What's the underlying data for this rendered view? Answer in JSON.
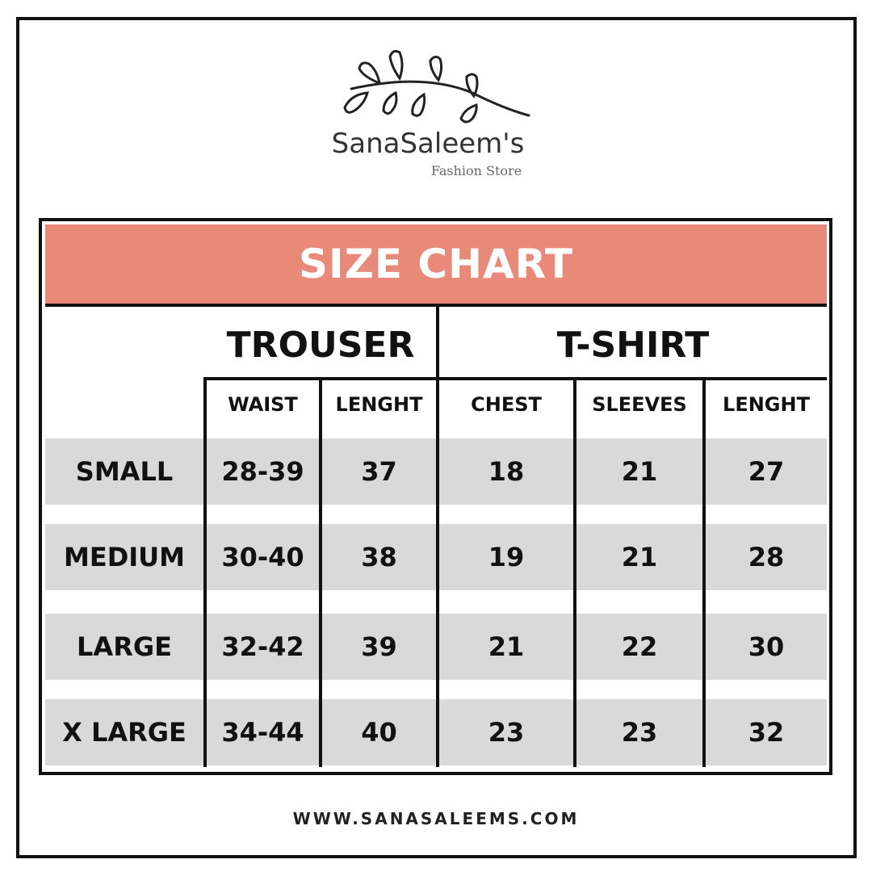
{
  "logo": {
    "brand": "SanaSaleem's",
    "tagline": "Fashion Store"
  },
  "title": "SIZE CHART",
  "groups": {
    "trouser": "TROUSER",
    "tshirt": "T-SHIRT"
  },
  "columns": [
    "WAIST",
    "LENGHT",
    "CHEST",
    "SLEEVES",
    "LENGHT"
  ],
  "rows": [
    {
      "label": "SMALL",
      "values": [
        "28-39",
        "37",
        "18",
        "21",
        "27"
      ]
    },
    {
      "label": "MEDIUM",
      "values": [
        "30-40",
        "38",
        "19",
        "21",
        "28"
      ]
    },
    {
      "label": "LARGE",
      "values": [
        "32-42",
        "39",
        "21",
        "22",
        "30"
      ]
    },
    {
      "label": "X LARGE",
      "values": [
        "34-44",
        "40",
        "23",
        "23",
        "32"
      ]
    }
  ],
  "footer": {
    "url": "WWW.SANASALEEMS.COM"
  },
  "colors": {
    "banner": "#e8897a",
    "row_shade": "#d9d9d9"
  }
}
